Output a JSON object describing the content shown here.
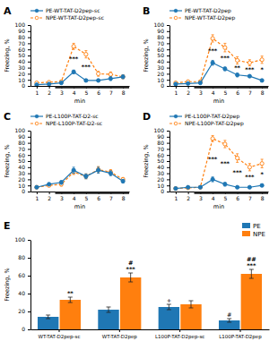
{
  "chart_data": [
    {
      "type": "line",
      "title": "A",
      "x_label": "min",
      "y_label": "Freezing, %",
      "x": [
        1,
        2,
        3,
        4,
        5,
        6,
        7,
        8
      ],
      "xlim": [
        0.5,
        8.5
      ],
      "xticks": [
        1,
        2,
        3,
        4,
        5,
        6,
        7,
        8
      ],
      "ylim": [
        0,
        100
      ],
      "yticks": [
        0,
        10,
        20,
        30,
        40,
        50,
        60,
        70,
        80,
        90,
        100
      ],
      "grid": false,
      "legend": "upper left",
      "series": [
        {
          "name": "PE-WT-TAT-D2pep-sc",
          "values": [
            2,
            3,
            5,
            23,
            9,
            9,
            12,
            15
          ],
          "errors": [
            1,
            1,
            2,
            3,
            2,
            2,
            3,
            3
          ],
          "line_style": "solid",
          "marker": "circle"
        },
        {
          "name": "NPE-WT-TAT-D2pep-sc",
          "values": [
            5,
            6,
            7,
            65,
            52,
            20,
            19,
            15
          ],
          "errors": [
            2,
            1,
            2,
            5,
            6,
            4,
            4,
            3
          ],
          "line_style": "dashed",
          "marker": "circle-open"
        }
      ],
      "annotations": [
        {
          "x": 4,
          "y": 44,
          "text": "***"
        },
        {
          "x": 5,
          "y": 30.5,
          "text": "***"
        }
      ],
      "cs_span": [
        2.5,
        8.5
      ]
    },
    {
      "type": "line",
      "title": "B",
      "x_label": "min",
      "y_label": "Freezing, %",
      "x": [
        1,
        2,
        3,
        4,
        5,
        6,
        7,
        8
      ],
      "xlim": [
        0.5,
        8.5
      ],
      "xticks": [
        1,
        2,
        3,
        4,
        5,
        6,
        7,
        8
      ],
      "ylim": [
        0,
        100
      ],
      "yticks": [
        0,
        10,
        20,
        30,
        40,
        50,
        60,
        70,
        80,
        90,
        100
      ],
      "grid": false,
      "legend": "upper left",
      "series": [
        {
          "name": "PE-WT-TAT-D2pep",
          "values": [
            3,
            4,
            5,
            38,
            28,
            18,
            16,
            9
          ],
          "errors": [
            1,
            1,
            2,
            4,
            3,
            3,
            2,
            2
          ],
          "line_style": "solid",
          "marker": "circle"
        },
        {
          "name": "NPE-WT-TAT-D2pep",
          "values": [
            5,
            7,
            7,
            78,
            63,
            42,
            38,
            43
          ],
          "errors": [
            2,
            2,
            2,
            6,
            7,
            6,
            5,
            6
          ],
          "line_style": "dashed",
          "marker": "circle-open"
        }
      ],
      "annotations": [
        {
          "x": 4,
          "y": 58,
          "text": "***"
        },
        {
          "x": 5,
          "y": 45.5,
          "text": "***"
        },
        {
          "x": 6,
          "y": 30,
          "text": "**"
        },
        {
          "x": 7,
          "y": 27,
          "text": "***"
        },
        {
          "x": 8,
          "y": 26,
          "text": "*"
        }
      ],
      "cs_span": [
        2.5,
        8.5
      ]
    },
    {
      "type": "line",
      "title": "C",
      "x_label": "min",
      "y_label": "Freezing, %",
      "x": [
        1,
        2,
        3,
        4,
        5,
        6,
        7,
        8
      ],
      "xlim": [
        0.5,
        8.5
      ],
      "xticks": [
        1,
        2,
        3,
        4,
        5,
        6,
        7,
        8
      ],
      "ylim": [
        0,
        100
      ],
      "yticks": [
        0,
        10,
        20,
        30,
        40,
        50,
        60,
        70,
        80,
        90,
        100
      ],
      "grid": false,
      "legend": "upper left",
      "series": [
        {
          "name": "PE-L100P-TAT-D2-sc",
          "values": [
            7,
            12,
            15,
            35,
            25,
            35,
            30,
            17
          ],
          "errors": [
            2,
            2,
            3,
            5,
            4,
            5,
            4,
            3
          ],
          "line_style": "solid",
          "marker": "circle"
        },
        {
          "name": "NPE-L100P-TAT-D2-sc",
          "values": [
            7,
            10,
            12,
            32,
            25,
            36,
            32,
            20
          ],
          "errors": [
            2,
            2,
            3,
            4,
            4,
            5,
            4,
            3
          ],
          "line_style": "dashed",
          "marker": "circle-open"
        }
      ],
      "annotations": [],
      "cs_span": [
        2.5,
        8.5
      ]
    },
    {
      "type": "line",
      "title": "D",
      "x_label": "min",
      "y_label": "Freezing, %",
      "x": [
        1,
        2,
        3,
        4,
        5,
        6,
        7,
        8
      ],
      "xlim": [
        0.5,
        8.5
      ],
      "xticks": [
        1,
        2,
        3,
        4,
        5,
        6,
        7,
        8
      ],
      "ylim": [
        0,
        100
      ],
      "yticks": [
        0,
        10,
        20,
        30,
        40,
        50,
        60,
        70,
        80,
        90,
        100
      ],
      "grid": false,
      "legend": "upper left",
      "series": [
        {
          "name": "PE-L100P-TAT-D2pep",
          "values": [
            5,
            7,
            7,
            20,
            12,
            7,
            7,
            10
          ],
          "errors": [
            2,
            2,
            2,
            4,
            3,
            2,
            2,
            2
          ],
          "line_style": "solid",
          "marker": "circle"
        },
        {
          "name": "NPE-L100P-TAT-D2pep",
          "values": [
            5,
            6,
            7,
            87,
            78,
            55,
            40,
            46
          ],
          "errors": [
            2,
            2,
            2,
            5,
            6,
            7,
            6,
            7
          ],
          "line_style": "dashed",
          "marker": "circle-open"
        }
      ],
      "annotations": [
        {
          "x": 4,
          "y": 53.5,
          "text": "***"
        },
        {
          "x": 5,
          "y": 45,
          "text": "***"
        },
        {
          "x": 6,
          "y": 31,
          "text": "***"
        },
        {
          "x": 7,
          "y": 23.5,
          "text": "***"
        },
        {
          "x": 8,
          "y": 28,
          "text": "*"
        }
      ],
      "cs_span": [
        2.5,
        8.5
      ]
    },
    {
      "type": "bar",
      "title": "E",
      "y_label": "Freezing, %",
      "categories": [
        "WT-TAT-D2pep-sc",
        "WT-TAT-D2pep",
        "L100P-TAT-D2pep-sc",
        "L100P-TAT-D2pep"
      ],
      "ylim": [
        0,
        100
      ],
      "yticks": [
        0,
        20,
        40,
        60,
        80,
        100
      ],
      "grid": false,
      "legend": "upper right",
      "series": [
        {
          "name": "PE",
          "values": [
            14,
            22,
            25,
            10
          ],
          "errors": [
            2,
            3,
            3,
            2
          ]
        },
        {
          "name": "NPE",
          "values": [
            33,
            58,
            28,
            62
          ],
          "errors": [
            3,
            5,
            4,
            5
          ]
        }
      ],
      "annotations": [
        {
          "series": 0,
          "category": 2,
          "text": [
            "+"
          ]
        },
        {
          "series": 0,
          "category": 3,
          "text": [
            "#"
          ]
        },
        {
          "series": 1,
          "category": 0,
          "text": [
            "**"
          ]
        },
        {
          "series": 1,
          "category": 1,
          "text": [
            "#",
            "***"
          ]
        },
        {
          "series": 1,
          "category": 3,
          "text": [
            "##",
            "***"
          ]
        }
      ]
    }
  ]
}
